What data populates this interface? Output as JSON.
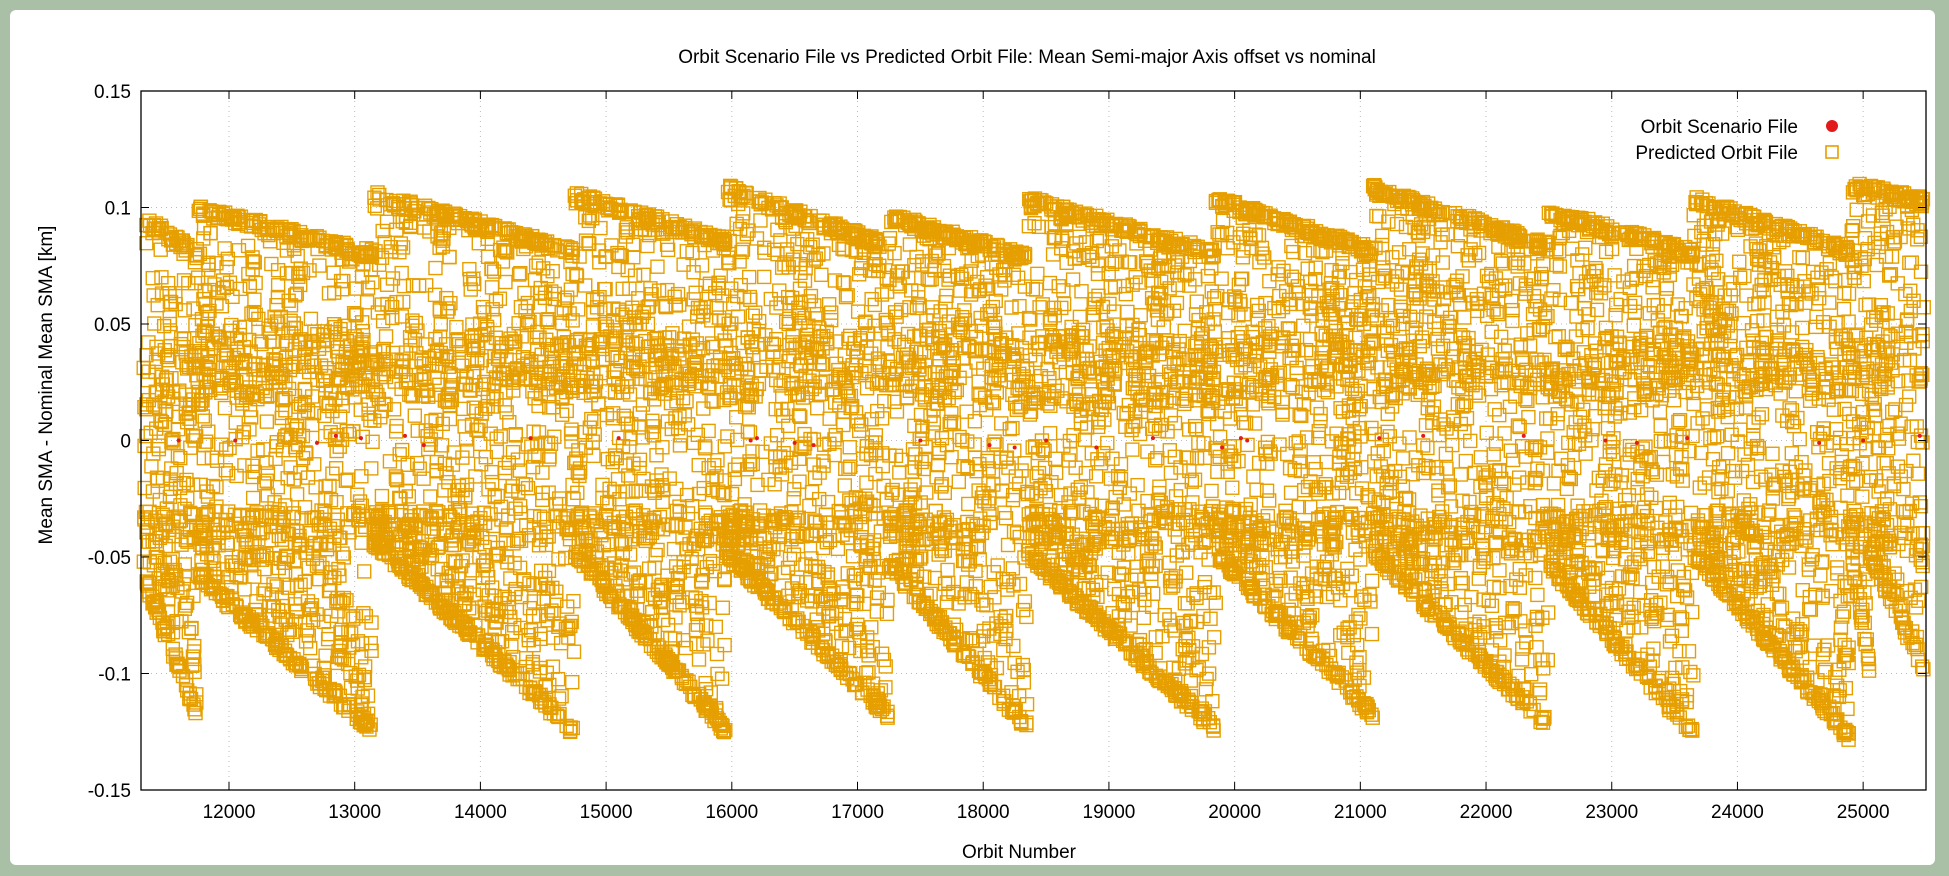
{
  "chart_data": {
    "type": "scatter",
    "title": "Orbit Scenario File vs Predicted Orbit File: Mean Semi-major Axis offset vs nominal",
    "xlabel": "Orbit Number",
    "ylabel": "Mean SMA - Nominal Mean SMA [km]",
    "xlim": [
      11300,
      25500
    ],
    "ylim": [
      -0.15,
      0.15
    ],
    "xticks": [
      12000,
      13000,
      14000,
      15000,
      16000,
      17000,
      18000,
      19000,
      20000,
      21000,
      22000,
      23000,
      24000,
      25000
    ],
    "yticks": [
      -0.15,
      -0.1,
      -0.05,
      0,
      0.05,
      0.1,
      0.15
    ],
    "ytick_labels": [
      "-0.15",
      "-0.1",
      "-0.05",
      "0",
      "0.05",
      "0.1",
      "0.15"
    ],
    "grid": true,
    "legend_position": "top-right",
    "series": [
      {
        "name": "Orbit Scenario File",
        "marker": "filled-circle",
        "color": "#e31a1c",
        "x": [
          11600,
          12050,
          12700,
          12850,
          13050,
          13400,
          13550,
          14400,
          15100,
          16150,
          16200,
          16500,
          16650,
          17500,
          18050,
          18250,
          18500,
          18900,
          19350,
          19900,
          20050,
          20100,
          21150,
          21500,
          22300,
          22950,
          23200,
          23600,
          24650,
          25000,
          25450
        ],
        "y": [
          0,
          0,
          -0.001,
          0.002,
          0.001,
          0.002,
          -0.002,
          0.001,
          0.001,
          0,
          0.001,
          -0.001,
          -0.002,
          0,
          -0.002,
          -0.003,
          0,
          -0.003,
          0.001,
          -0.003,
          0.001,
          0,
          0.001,
          0.002,
          0.002,
          0,
          -0.001,
          0.001,
          -0.001,
          0,
          0.002
        ]
      },
      {
        "name": "Predicted Orbit File",
        "marker": "open-square",
        "color": "#e69f00",
        "cycles": [
          {
            "x": [
              11320,
              11750
            ],
            "top": [
              0.097,
              0.082
            ],
            "upper_min": 0.015,
            "bottom": [
              -0.06,
              -0.12
            ]
          },
          {
            "x": [
              11750,
              13150
            ],
            "top": [
              0.101,
              0.082
            ],
            "upper_min": 0.015,
            "bottom": [
              -0.06,
              -0.126
            ]
          },
          {
            "x": [
              13150,
              14750
            ],
            "top": [
              0.107,
              0.083
            ],
            "upper_min": 0.018,
            "bottom": [
              -0.045,
              -0.127
            ]
          },
          {
            "x": [
              14750,
              15950
            ],
            "top": [
              0.107,
              0.087
            ],
            "upper_min": 0.02,
            "bottom": [
              -0.05,
              -0.126
            ]
          },
          {
            "x": [
              15950,
              17250
            ],
            "top": [
              0.11,
              0.085
            ],
            "upper_min": 0.018,
            "bottom": [
              -0.05,
              -0.12
            ]
          },
          {
            "x": [
              17250,
              18350
            ],
            "top": [
              0.098,
              0.08
            ],
            "upper_min": 0.015,
            "bottom": [
              -0.055,
              -0.125
            ]
          },
          {
            "x": [
              18350,
              19850
            ],
            "top": [
              0.105,
              0.082
            ],
            "upper_min": 0.015,
            "bottom": [
              -0.05,
              -0.126
            ]
          },
          {
            "x": [
              19850,
              21100
            ],
            "top": [
              0.105,
              0.083
            ],
            "upper_min": 0.02,
            "bottom": [
              -0.05,
              -0.12
            ]
          },
          {
            "x": [
              21100,
              22500
            ],
            "top": [
              0.11,
              0.085
            ],
            "upper_min": 0.022,
            "bottom": [
              -0.05,
              -0.125
            ]
          },
          {
            "x": [
              22500,
              23650
            ],
            "top": [
              0.1,
              0.082
            ],
            "upper_min": 0.018,
            "bottom": [
              -0.055,
              -0.128
            ]
          },
          {
            "x": [
              23650,
              24900
            ],
            "top": [
              0.105,
              0.083
            ],
            "upper_min": 0.02,
            "bottom": [
              -0.05,
              -0.13
            ]
          },
          {
            "x": [
              24900,
              25050
            ],
            "top": [
              0.112,
              0.108
            ],
            "upper_min": 0.02,
            "bottom": [
              -0.05,
              -0.1
            ]
          },
          {
            "x": [
              25050,
              25500
            ],
            "top": [
              0.11,
              0.104
            ],
            "upper_min": 0.025,
            "bottom": [
              -0.05,
              -0.102
            ]
          }
        ],
        "dense_band": [
          -0.045,
          0.045
        ]
      }
    ]
  }
}
